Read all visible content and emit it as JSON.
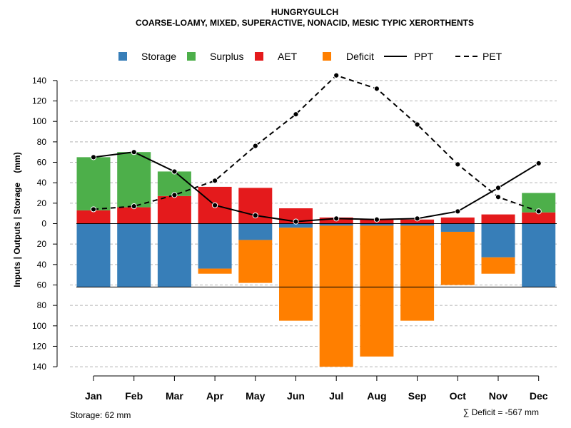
{
  "chart_data": {
    "type": "bar",
    "title": "HUNGRYGULCH",
    "subtitle": "COARSE-LOAMY, MIXED, SUPERACTIVE, NONACID, MESIC TYPIC XERORTHENTS",
    "ylabel": "Inputs | Outputs | Storage    (mm)",
    "ylim": [
      -140,
      150
    ],
    "yticks": [
      140,
      120,
      100,
      80,
      60,
      40,
      20,
      0,
      -20,
      -40,
      -60,
      -80,
      -100,
      -120,
      -140
    ],
    "ytick_labels": [
      "140",
      "120",
      "100",
      "80",
      "60",
      "40",
      "20",
      "0",
      "20",
      "40",
      "60",
      "80",
      "100",
      "120",
      "140"
    ],
    "categories": [
      "Jan",
      "Feb",
      "Mar",
      "Apr",
      "May",
      "Jun",
      "Jul",
      "Aug",
      "Sep",
      "Oct",
      "Nov",
      "Dec"
    ],
    "legend": [
      {
        "label": "Storage",
        "kind": "box",
        "color": "#377EB8"
      },
      {
        "label": "Surplus",
        "kind": "box",
        "color": "#4DAF4A"
      },
      {
        "label": "AET",
        "kind": "box",
        "color": "#E41A1C"
      },
      {
        "label": "Deficit",
        "kind": "box",
        "color": "#FF7F00"
      },
      {
        "label": "PPT",
        "kind": "solid",
        "color": "#000000"
      },
      {
        "label": "PET",
        "kind": "dashed",
        "color": "#000000"
      }
    ],
    "series": [
      {
        "name": "AET",
        "color": "#E41A1C",
        "values": [
          13,
          16,
          27,
          36,
          35,
          15,
          6,
          4,
          4,
          6,
          9,
          11
        ]
      },
      {
        "name": "Surplus",
        "color": "#4DAF4A",
        "values": [
          52,
          54,
          24,
          0,
          0,
          0,
          0,
          0,
          0,
          0,
          0,
          19
        ]
      },
      {
        "name": "Storage",
        "color": "#377EB8",
        "values": [
          62,
          62,
          62,
          44,
          16,
          4,
          2,
          2,
          2,
          8,
          33,
          62
        ]
      },
      {
        "name": "Deficit",
        "color": "#FF7F00",
        "values": [
          0,
          0,
          0,
          5,
          42,
          91,
          138,
          128,
          93,
          52,
          16,
          0
        ]
      },
      {
        "name": "PPT",
        "color": "#000000",
        "style": "solid",
        "values": [
          65,
          70,
          51,
          18,
          8,
          2,
          5,
          4,
          5,
          12,
          35,
          59
        ]
      },
      {
        "name": "PET",
        "color": "#000000",
        "style": "dashed",
        "values": [
          14,
          17,
          28,
          42,
          76,
          107,
          145,
          132,
          97,
          58,
          26,
          12
        ]
      }
    ],
    "storage_reference": 62,
    "grid": true
  },
  "footer": {
    "storage_note": "Storage: 62 mm",
    "deficit_note": "∑ Deficit = -567 mm"
  }
}
